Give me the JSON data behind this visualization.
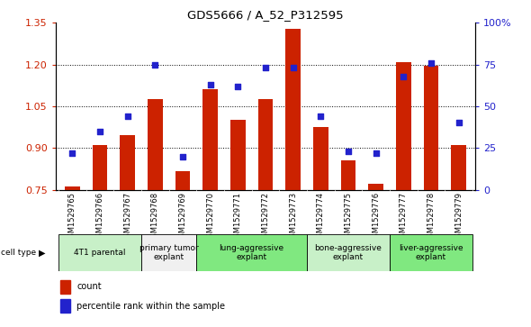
{
  "title": "GDS5666 / A_52_P312595",
  "samples": [
    "GSM1529765",
    "GSM1529766",
    "GSM1529767",
    "GSM1529768",
    "GSM1529769",
    "GSM1529770",
    "GSM1529771",
    "GSM1529772",
    "GSM1529773",
    "GSM1529774",
    "GSM1529775",
    "GSM1529776",
    "GSM1529777",
    "GSM1529778",
    "GSM1529779"
  ],
  "counts": [
    0.762,
    0.91,
    0.945,
    1.075,
    0.815,
    1.11,
    1.0,
    1.075,
    1.33,
    0.975,
    0.855,
    0.77,
    1.21,
    1.195,
    0.91
  ],
  "percentiles": [
    22,
    35,
    44,
    75,
    20,
    63,
    62,
    73,
    73,
    44,
    23,
    22,
    68,
    76,
    40
  ],
  "cell_type_groups": [
    {
      "label": "4T1 parental",
      "start": 0,
      "end": 2,
      "color": "#c8f0c8"
    },
    {
      "label": "primary tumor\nexplant",
      "start": 3,
      "end": 4,
      "color": "#f0f0f0"
    },
    {
      "label": "lung-aggressive\nexplant",
      "start": 5,
      "end": 8,
      "color": "#80e880"
    },
    {
      "label": "bone-aggressive\nexplant",
      "start": 9,
      "end": 11,
      "color": "#c8f0c8"
    },
    {
      "label": "liver-aggressive\nexplant",
      "start": 12,
      "end": 14,
      "color": "#80e880"
    }
  ],
  "ylim_left": [
    0.75,
    1.35
  ],
  "ylim_right": [
    0,
    100
  ],
  "yticks_left": [
    0.75,
    0.9,
    1.05,
    1.2,
    1.35
  ],
  "yticks_right": [
    0,
    25,
    50,
    75,
    100
  ],
  "hgrid_vals": [
    0.9,
    1.05,
    1.2
  ],
  "bar_color": "#cc2200",
  "dot_color": "#2222cc",
  "bar_width": 0.55
}
